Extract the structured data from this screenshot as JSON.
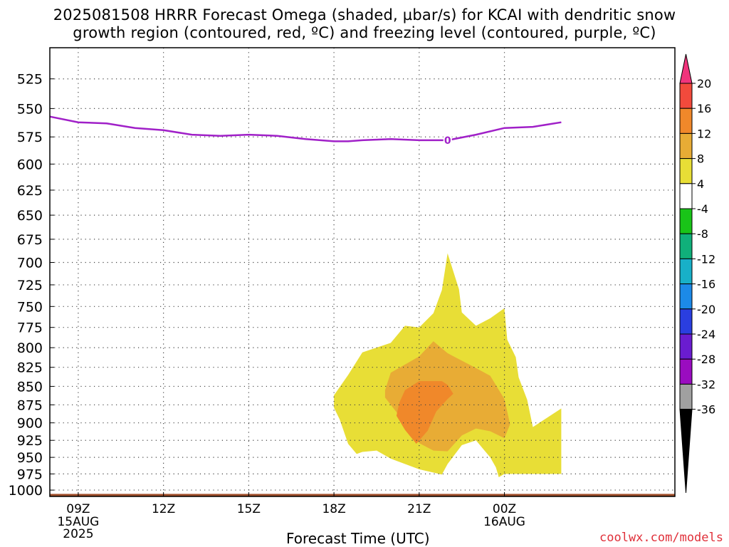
{
  "chart_data": {
    "type": "heatmap",
    "title_line1": "2025081508 HRRR Forecast Omega (shaded, µbar/s) for KCAI with dendritic snow",
    "title_line2": "growth region (contoured, red, ºC) and freezing level (contoured, purple, ºC)",
    "xlabel": "Forecast Time (UTC)",
    "ylabel": "",
    "x_unit": "hours since 2025-08-15 08Z",
    "xlim": [
      0,
      22
    ],
    "ylim": [
      1010,
      500
    ],
    "y_scale": "log-pressure",
    "grid": true,
    "x_ticks": [
      {
        "x": 1,
        "label": "09Z",
        "sub1": "15AUG",
        "sub2": "2025"
      },
      {
        "x": 4,
        "label": "12Z",
        "sub1": "",
        "sub2": ""
      },
      {
        "x": 7,
        "label": "15Z",
        "sub1": "",
        "sub2": ""
      },
      {
        "x": 10,
        "label": "18Z",
        "sub1": "",
        "sub2": ""
      },
      {
        "x": 13,
        "label": "21Z",
        "sub1": "",
        "sub2": ""
      },
      {
        "x": 16,
        "label": "00Z",
        "sub1": "16AUG",
        "sub2": ""
      }
    ],
    "y_ticks": [
      525,
      550,
      575,
      600,
      625,
      650,
      675,
      700,
      725,
      750,
      775,
      800,
      825,
      850,
      875,
      900,
      925,
      950,
      975,
      1000
    ],
    "colorbar": {
      "levels": [
        20,
        16,
        12,
        8,
        4,
        -4,
        -8,
        -12,
        -16,
        -20,
        -24,
        -28,
        -32,
        -36
      ],
      "colors": [
        "#f0347c",
        "#f24a3c",
        "#f0882a",
        "#e8ac35",
        "#e8de36",
        "#ffffff",
        "#19c418",
        "#10b07a",
        "#18b0c8",
        "#1c8ae8",
        "#2a3ee0",
        "#6a1cd0",
        "#9a0cc0",
        "#a0a0a0",
        "#000000"
      ]
    },
    "freezing_level": {
      "label": "0",
      "color": "#a020c8",
      "points": [
        [
          0,
          557
        ],
        [
          1,
          562
        ],
        [
          2,
          563
        ],
        [
          3,
          567
        ],
        [
          4,
          569
        ],
        [
          5,
          573
        ],
        [
          6,
          574
        ],
        [
          7,
          573
        ],
        [
          8,
          574
        ],
        [
          9,
          577
        ],
        [
          10,
          579
        ],
        [
          10.5,
          579
        ],
        [
          11,
          578
        ],
        [
          12,
          577
        ],
        [
          13,
          578
        ],
        [
          14,
          578
        ],
        [
          15,
          573
        ],
        [
          16,
          567
        ],
        [
          17,
          566
        ],
        [
          18,
          562
        ]
      ]
    },
    "omega_4": [
      [
        10,
        862
      ],
      [
        10.5,
        835
      ],
      [
        11,
        806
      ],
      [
        12,
        794
      ],
      [
        12.5,
        773
      ],
      [
        13,
        775
      ],
      [
        13.5,
        758
      ],
      [
        13.8,
        731
      ],
      [
        14,
        690
      ],
      [
        14.4,
        730
      ],
      [
        14.5,
        757
      ],
      [
        15,
        773
      ],
      [
        15.5,
        764
      ],
      [
        16,
        752
      ],
      [
        16.1,
        790
      ],
      [
        16.4,
        812
      ],
      [
        16.5,
        838
      ],
      [
        16.8,
        868
      ],
      [
        17,
        906
      ],
      [
        18,
        880
      ],
      [
        18,
        975
      ],
      [
        16,
        975
      ],
      [
        15.8,
        980
      ],
      [
        15.7,
        965
      ],
      [
        15.5,
        950
      ],
      [
        15.3,
        940
      ],
      [
        15,
        925
      ],
      [
        14.5,
        932
      ],
      [
        14,
        960
      ],
      [
        13.8,
        976
      ],
      [
        13,
        968
      ],
      [
        12,
        952
      ],
      [
        11.5,
        940
      ],
      [
        11,
        942
      ],
      [
        10.8,
        945
      ],
      [
        10.5,
        930
      ],
      [
        10.2,
        895
      ],
      [
        10,
        879
      ]
    ],
    "omega_8": [
      [
        11.8,
        855
      ],
      [
        12,
        832
      ],
      [
        13,
        811
      ],
      [
        13.5,
        792
      ],
      [
        14,
        807
      ],
      [
        15,
        826
      ],
      [
        15.5,
        836
      ],
      [
        16,
        867
      ],
      [
        16.2,
        902
      ],
      [
        16,
        922
      ],
      [
        15.5,
        912
      ],
      [
        15,
        908
      ],
      [
        14.5,
        918
      ],
      [
        14,
        941
      ],
      [
        13.5,
        940
      ],
      [
        13,
        929
      ],
      [
        12.5,
        905
      ],
      [
        12.2,
        885
      ],
      [
        11.8,
        865
      ]
    ],
    "omega_12": [
      [
        12.3,
        872
      ],
      [
        12.5,
        855
      ],
      [
        13,
        843
      ],
      [
        13.8,
        843
      ],
      [
        14,
        848
      ],
      [
        14.2,
        860
      ],
      [
        14,
        867
      ],
      [
        13.6,
        884
      ],
      [
        13.3,
        911
      ],
      [
        12.9,
        930
      ],
      [
        12.5,
        910
      ],
      [
        12.2,
        890
      ]
    ],
    "surface": {
      "color": "#a04e2a",
      "pressure": 1006
    }
  }
}
